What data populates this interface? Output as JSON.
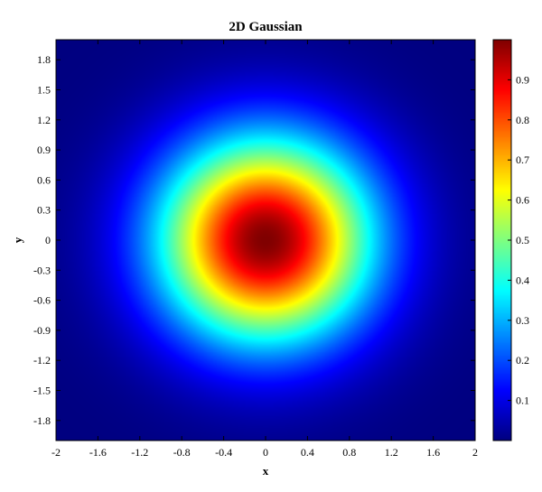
{
  "chart_data": {
    "type": "heatmap",
    "title": "2D Gaussian",
    "xlabel": "x",
    "ylabel": "y",
    "xlim": [
      -2,
      2
    ],
    "ylim": [
      -2,
      2
    ],
    "x_ticks": [
      "-2",
      "-1.6",
      "-1.2",
      "-0.8",
      "-0.4",
      "0",
      "0.4",
      "0.8",
      "1.2",
      "1.6",
      "2"
    ],
    "x_tick_values": [
      -2,
      -1.6,
      -1.2,
      -0.8,
      -0.4,
      0,
      0.4,
      0.8,
      1.2,
      1.6,
      2
    ],
    "y_ticks": [
      "1.8",
      "1.5",
      "1.2",
      "0.9",
      "0.6",
      "0.3",
      "0",
      "-0.3",
      "-0.6",
      "-0.9",
      "-1.2",
      "-1.5",
      "-1.8"
    ],
    "y_tick_values": [
      1.8,
      1.5,
      1.2,
      0.9,
      0.6,
      0.3,
      0,
      -0.3,
      -0.6,
      -0.9,
      -1.2,
      -1.5,
      -1.8
    ],
    "function": "exp(-(x^2 + y^2))",
    "peak": {
      "x": 0,
      "y": 0,
      "value": 1
    },
    "colormap": "jet",
    "colorbar": {
      "range": [
        0,
        1
      ],
      "ticks": [
        "0.9",
        "0.8",
        "0.7",
        "0.6",
        "0.5",
        "0.4",
        "0.3",
        "0.2",
        "0.1"
      ],
      "tick_values": [
        0.9,
        0.8,
        0.7,
        0.6,
        0.5,
        0.4,
        0.3,
        0.2,
        0.1
      ]
    },
    "grid": false
  },
  "colors": {
    "frame": "#000000",
    "background": "#ffffff",
    "low": "#00008f",
    "high": "#800000"
  }
}
